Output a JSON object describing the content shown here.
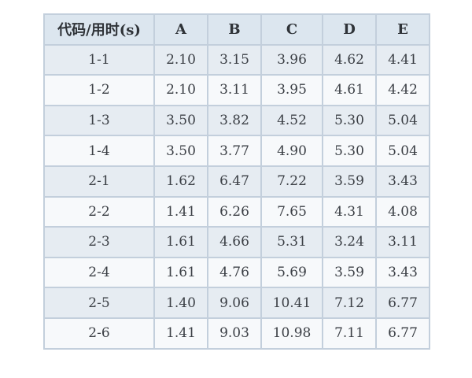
{
  "table": {
    "headers": [
      "代码/用时(s)",
      "A",
      "B",
      "C",
      "D",
      "E"
    ],
    "rows": [
      [
        "1-1",
        "2.10",
        "3.15",
        "3.96",
        "4.62",
        "4.41"
      ],
      [
        "1-2",
        "2.10",
        "3.11",
        "3.95",
        "4.61",
        "4.42"
      ],
      [
        "1-3",
        "3.50",
        "3.82",
        "4.52",
        "5.30",
        "5.04"
      ],
      [
        "1-4",
        "3.50",
        "3.77",
        "4.90",
        "5.30",
        "5.04"
      ],
      [
        "2-1",
        "1.62",
        "6.47",
        "7.22",
        "3.59",
        "3.43"
      ],
      [
        "2-2",
        "1.41",
        "6.26",
        "7.65",
        "4.31",
        "4.08"
      ],
      [
        "2-3",
        "1.61",
        "4.66",
        "5.31",
        "3.24",
        "3.11"
      ],
      [
        "2-4",
        "1.61",
        "4.76",
        "5.69",
        "3.59",
        "3.43"
      ],
      [
        "2-5",
        "1.40",
        "9.06",
        "10.41",
        "7.12",
        "6.77"
      ],
      [
        "2-6",
        "1.41",
        "9.03",
        "10.98",
        "7.11",
        "6.77"
      ]
    ]
  },
  "colors": {
    "header_bg": "#dce6ef",
    "row_shaded_bg": "#e6ecf2",
    "row_light_bg": "#f7f9fb",
    "border": "#c3cfdc"
  }
}
